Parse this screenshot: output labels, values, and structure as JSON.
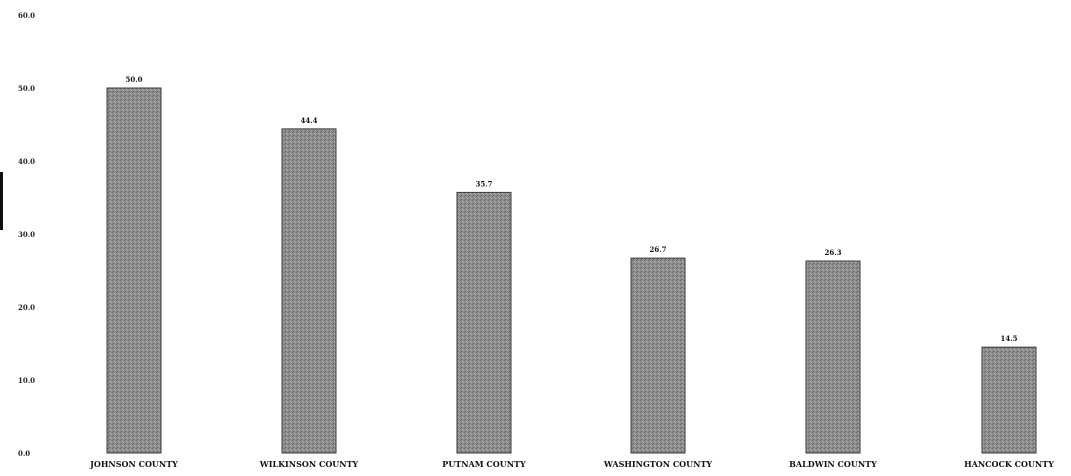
{
  "chart_data": {
    "type": "bar",
    "title": "",
    "xlabel": "",
    "ylabel": "",
    "ylim": [
      0,
      60
    ],
    "yticks": [
      "0.0",
      "10.0",
      "20.0",
      "30.0",
      "40.0",
      "50.0",
      "60.0"
    ],
    "grid": false,
    "legend": "none",
    "categories": [
      "JOHNSON COUNTY",
      "WILKINSON COUNTY",
      "PUTNAM COUNTY",
      "WASHINGTON COUNTY",
      "BALDWIN COUNTY",
      "HANCOCK COUNTY"
    ],
    "values": [
      50.0,
      44.4,
      35.7,
      26.7,
      26.3,
      14.5
    ],
    "data_labels": [
      "50.0",
      "44.4",
      "35.7",
      "26.7",
      "26.3",
      "14.5"
    ],
    "bar_color": "#8e8e8e"
  }
}
